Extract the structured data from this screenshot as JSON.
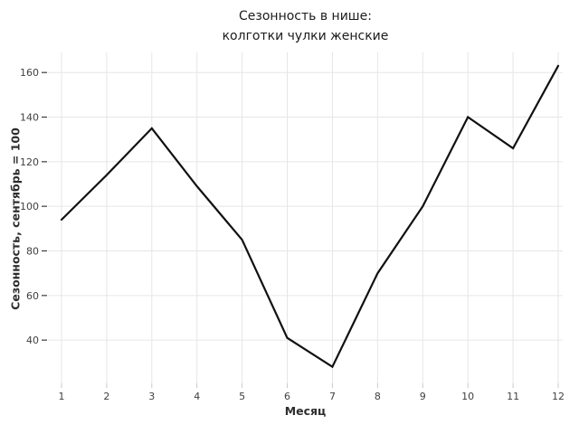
{
  "chart_data": {
    "type": "line",
    "title_lines": [
      "Сезонность в нише:",
      "колготки чулки женские"
    ],
    "xlabel": "Месяц",
    "ylabel": "Сезонность, сентябрь = 100",
    "categories": [
      1,
      2,
      3,
      4,
      5,
      6,
      7,
      8,
      9,
      10,
      11,
      12
    ],
    "values": [
      94,
      114,
      135,
      109,
      85,
      41,
      28,
      70,
      100,
      140,
      126,
      163
    ],
    "xticks": [
      1,
      2,
      3,
      4,
      5,
      6,
      7,
      8,
      9,
      10,
      11,
      12
    ],
    "yticks": [
      40,
      60,
      80,
      100,
      120,
      140,
      160
    ],
    "xlim": [
      0.7,
      12.1
    ],
    "ylim": [
      21,
      169
    ],
    "grid": true,
    "legend": false,
    "colors": {
      "line": "#111111",
      "grid": "#e6e6e6",
      "x_tick": "#c9c9c9",
      "y_tick": "#3b3b3b",
      "background": "#ffffff",
      "title_text": "#1c1c1c",
      "axis_title_text": "#2e2e2e",
      "tick_label_text": "#3f3f3f"
    }
  }
}
